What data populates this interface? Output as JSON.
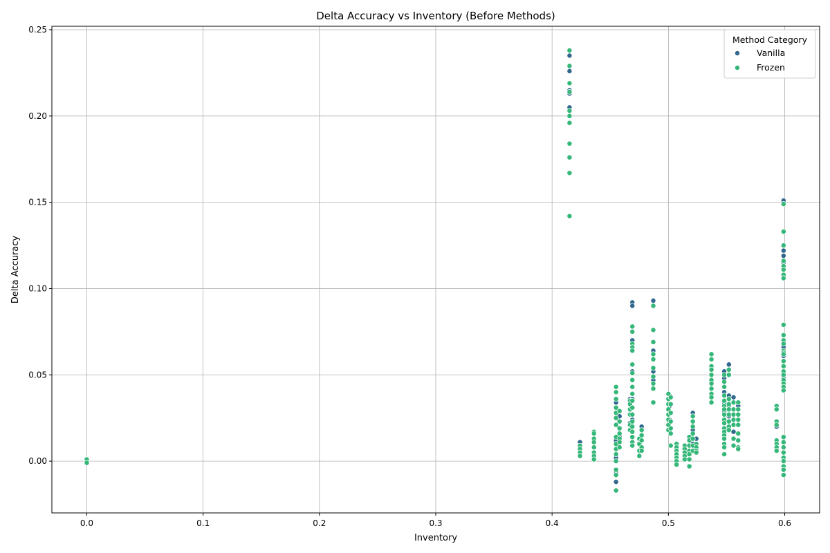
{
  "colors": {
    "vanilla": "#31688e",
    "frozen": "#35b779",
    "grid": "#b0b0b0",
    "background": "#ffffff",
    "marker_edge": "#ffffff"
  },
  "chart_data": {
    "type": "scatter",
    "title": "Delta Accuracy vs Inventory (Before Methods)",
    "xlabel": "Inventory",
    "ylabel": "Delta Accuracy",
    "xlim": [
      -0.03,
      0.63
    ],
    "ylim": [
      -0.03,
      0.252
    ],
    "xticks": [
      0.0,
      0.1,
      0.2,
      0.3,
      0.4,
      0.5,
      0.6
    ],
    "xtick_labels": [
      "0.0",
      "0.1",
      "0.2",
      "0.3",
      "0.4",
      "0.5",
      "0.6"
    ],
    "yticks": [
      0.0,
      0.05,
      0.1,
      0.15,
      0.2,
      0.25
    ],
    "ytick_labels": [
      "0.00",
      "0.05",
      "0.10",
      "0.15",
      "0.20",
      "0.25"
    ],
    "grid": true,
    "legend": {
      "title": "Method Category",
      "placement": "top-right",
      "entries": [
        "Vanilla",
        "Frozen"
      ]
    },
    "series": [
      {
        "name": "Vanilla",
        "points": [
          [
            0.0,
            0.0
          ],
          [
            0.0,
            0.001
          ],
          [
            0.0,
            -0.001
          ],
          [
            0.415,
            0.235
          ],
          [
            0.415,
            0.226
          ],
          [
            0.415,
            0.215
          ],
          [
            0.415,
            0.213
          ],
          [
            0.415,
            0.205
          ],
          [
            0.424,
            0.011
          ],
          [
            0.424,
            0.008
          ],
          [
            0.424,
            0.006
          ],
          [
            0.455,
            0.034
          ],
          [
            0.455,
            0.012
          ],
          [
            0.455,
            0.002
          ],
          [
            0.455,
            -0.006
          ],
          [
            0.455,
            -0.012
          ],
          [
            0.458,
            0.026
          ],
          [
            0.458,
            0.014
          ],
          [
            0.467,
            0.036
          ],
          [
            0.467,
            0.03
          ],
          [
            0.467,
            0.022
          ],
          [
            0.469,
            0.092
          ],
          [
            0.469,
            0.09
          ],
          [
            0.469,
            0.07
          ],
          [
            0.469,
            0.052
          ],
          [
            0.469,
            0.036
          ],
          [
            0.469,
            0.024
          ],
          [
            0.477,
            0.02
          ],
          [
            0.477,
            0.012
          ],
          [
            0.487,
            0.093
          ],
          [
            0.487,
            0.064
          ],
          [
            0.487,
            0.052
          ],
          [
            0.487,
            0.047
          ],
          [
            0.501,
            0.038
          ],
          [
            0.501,
            0.032
          ],
          [
            0.501,
            0.024
          ],
          [
            0.521,
            0.028
          ],
          [
            0.521,
            0.018
          ],
          [
            0.521,
            0.01
          ],
          [
            0.524,
            0.013
          ],
          [
            0.548,
            0.052
          ],
          [
            0.548,
            0.048
          ],
          [
            0.548,
            0.04
          ],
          [
            0.548,
            0.034
          ],
          [
            0.548,
            0.029
          ],
          [
            0.548,
            0.024
          ],
          [
            0.548,
            0.015
          ],
          [
            0.552,
            0.056
          ],
          [
            0.552,
            0.038
          ],
          [
            0.552,
            0.032
          ],
          [
            0.552,
            0.026
          ],
          [
            0.556,
            0.037
          ],
          [
            0.556,
            0.017
          ],
          [
            0.56,
            0.032
          ],
          [
            0.593,
            0.02
          ],
          [
            0.599,
            0.151
          ],
          [
            0.599,
            0.122
          ],
          [
            0.599,
            0.119
          ],
          [
            0.599,
            0.115
          ],
          [
            0.599,
            0.079
          ],
          [
            0.599,
            0.066
          ],
          [
            0.599,
            0.061
          ],
          [
            0.599,
            0.048
          ],
          [
            0.599,
            0.008
          ]
        ]
      },
      {
        "name": "Frozen",
        "points": [
          [
            0.0,
            0.0
          ],
          [
            0.0,
            0.001
          ],
          [
            0.0,
            -0.001
          ],
          [
            0.415,
            0.238
          ],
          [
            0.415,
            0.229
          ],
          [
            0.415,
            0.219
          ],
          [
            0.415,
            0.214
          ],
          [
            0.415,
            0.203
          ],
          [
            0.415,
            0.2
          ],
          [
            0.415,
            0.196
          ],
          [
            0.415,
            0.184
          ],
          [
            0.415,
            0.176
          ],
          [
            0.415,
            0.167
          ],
          [
            0.415,
            0.142
          ],
          [
            0.424,
            0.009
          ],
          [
            0.424,
            0.007
          ],
          [
            0.424,
            0.005
          ],
          [
            0.424,
            0.003
          ],
          [
            0.436,
            0.017
          ],
          [
            0.436,
            0.016
          ],
          [
            0.436,
            0.013
          ],
          [
            0.436,
            0.011
          ],
          [
            0.436,
            0.008
          ],
          [
            0.436,
            0.005
          ],
          [
            0.436,
            0.003
          ],
          [
            0.436,
            0.001
          ],
          [
            0.455,
            0.043
          ],
          [
            0.455,
            0.04
          ],
          [
            0.455,
            0.036
          ],
          [
            0.455,
            0.031
          ],
          [
            0.455,
            0.028
          ],
          [
            0.455,
            0.025
          ],
          [
            0.455,
            0.021
          ],
          [
            0.455,
            0.014
          ],
          [
            0.455,
            0.01
          ],
          [
            0.455,
            0.007
          ],
          [
            0.455,
            0.004
          ],
          [
            0.455,
            0.0
          ],
          [
            0.455,
            -0.005
          ],
          [
            0.455,
            -0.008
          ],
          [
            0.455,
            -0.017
          ],
          [
            0.458,
            0.029
          ],
          [
            0.458,
            0.023
          ],
          [
            0.458,
            0.019
          ],
          [
            0.458,
            0.016
          ],
          [
            0.458,
            0.013
          ],
          [
            0.458,
            0.011
          ],
          [
            0.458,
            0.008
          ],
          [
            0.467,
            0.035
          ],
          [
            0.467,
            0.033
          ],
          [
            0.467,
            0.03
          ],
          [
            0.467,
            0.027
          ],
          [
            0.467,
            0.021
          ],
          [
            0.467,
            0.018
          ],
          [
            0.469,
            0.078
          ],
          [
            0.469,
            0.075
          ],
          [
            0.469,
            0.068
          ],
          [
            0.469,
            0.066
          ],
          [
            0.469,
            0.064
          ],
          [
            0.469,
            0.056
          ],
          [
            0.469,
            0.051
          ],
          [
            0.469,
            0.047
          ],
          [
            0.469,
            0.043
          ],
          [
            0.469,
            0.039
          ],
          [
            0.469,
            0.035
          ],
          [
            0.469,
            0.031
          ],
          [
            0.469,
            0.027
          ],
          [
            0.469,
            0.023
          ],
          [
            0.469,
            0.02
          ],
          [
            0.469,
            0.017
          ],
          [
            0.469,
            0.014
          ],
          [
            0.469,
            0.011
          ],
          [
            0.469,
            0.009
          ],
          [
            0.475,
            0.013
          ],
          [
            0.475,
            0.01
          ],
          [
            0.475,
            0.006
          ],
          [
            0.475,
            0.003
          ],
          [
            0.477,
            0.018
          ],
          [
            0.477,
            0.015
          ],
          [
            0.477,
            0.012
          ],
          [
            0.477,
            0.008
          ],
          [
            0.477,
            0.006
          ],
          [
            0.487,
            0.09
          ],
          [
            0.487,
            0.076
          ],
          [
            0.487,
            0.069
          ],
          [
            0.487,
            0.062
          ],
          [
            0.487,
            0.059
          ],
          [
            0.487,
            0.054
          ],
          [
            0.487,
            0.049
          ],
          [
            0.487,
            0.045
          ],
          [
            0.487,
            0.042
          ],
          [
            0.487,
            0.034
          ],
          [
            0.5,
            0.039
          ],
          [
            0.5,
            0.036
          ],
          [
            0.5,
            0.033
          ],
          [
            0.5,
            0.03
          ],
          [
            0.5,
            0.027
          ],
          [
            0.5,
            0.024
          ],
          [
            0.5,
            0.021
          ],
          [
            0.5,
            0.018
          ],
          [
            0.502,
            0.037
          ],
          [
            0.502,
            0.033
          ],
          [
            0.502,
            0.028
          ],
          [
            0.502,
            0.023
          ],
          [
            0.502,
            0.019
          ],
          [
            0.502,
            0.016
          ],
          [
            0.502,
            0.009
          ],
          [
            0.507,
            0.01
          ],
          [
            0.507,
            0.008
          ],
          [
            0.507,
            0.006
          ],
          [
            0.507,
            0.004
          ],
          [
            0.507,
            0.002
          ],
          [
            0.507,
            0.0
          ],
          [
            0.507,
            -0.002
          ],
          [
            0.514,
            0.009
          ],
          [
            0.514,
            0.007
          ],
          [
            0.514,
            0.005
          ],
          [
            0.514,
            0.003
          ],
          [
            0.514,
            0.001
          ],
          [
            0.518,
            0.014
          ],
          [
            0.518,
            0.012
          ],
          [
            0.518,
            0.009
          ],
          [
            0.518,
            0.006
          ],
          [
            0.518,
            0.004
          ],
          [
            0.518,
            0.001
          ],
          [
            0.518,
            -0.003
          ],
          [
            0.521,
            0.026
          ],
          [
            0.521,
            0.023
          ],
          [
            0.521,
            0.02
          ],
          [
            0.521,
            0.016
          ],
          [
            0.521,
            0.013
          ],
          [
            0.521,
            0.009
          ],
          [
            0.521,
            0.006
          ],
          [
            0.524,
            0.01
          ],
          [
            0.524,
            0.008
          ],
          [
            0.524,
            0.006
          ],
          [
            0.524,
            0.005
          ],
          [
            0.537,
            0.062
          ],
          [
            0.537,
            0.059
          ],
          [
            0.537,
            0.055
          ],
          [
            0.537,
            0.053
          ],
          [
            0.537,
            0.05
          ],
          [
            0.537,
            0.047
          ],
          [
            0.537,
            0.045
          ],
          [
            0.537,
            0.042
          ],
          [
            0.537,
            0.039
          ],
          [
            0.537,
            0.037
          ],
          [
            0.537,
            0.034
          ],
          [
            0.548,
            0.05
          ],
          [
            0.548,
            0.046
          ],
          [
            0.548,
            0.043
          ],
          [
            0.548,
            0.038
          ],
          [
            0.548,
            0.035
          ],
          [
            0.548,
            0.032
          ],
          [
            0.548,
            0.03
          ],
          [
            0.548,
            0.027
          ],
          [
            0.548,
            0.024
          ],
          [
            0.548,
            0.022
          ],
          [
            0.548,
            0.019
          ],
          [
            0.548,
            0.017
          ],
          [
            0.548,
            0.015
          ],
          [
            0.548,
            0.013
          ],
          [
            0.548,
            0.01
          ],
          [
            0.548,
            0.008
          ],
          [
            0.548,
            0.004
          ],
          [
            0.552,
            0.053
          ],
          [
            0.552,
            0.05
          ],
          [
            0.552,
            0.036
          ],
          [
            0.552,
            0.033
          ],
          [
            0.552,
            0.03
          ],
          [
            0.552,
            0.027
          ],
          [
            0.552,
            0.023
          ],
          [
            0.552,
            0.02
          ],
          [
            0.552,
            0.018
          ],
          [
            0.556,
            0.034
          ],
          [
            0.556,
            0.03
          ],
          [
            0.556,
            0.027
          ],
          [
            0.556,
            0.024
          ],
          [
            0.556,
            0.021
          ],
          [
            0.556,
            0.013
          ],
          [
            0.556,
            0.009
          ],
          [
            0.56,
            0.034
          ],
          [
            0.56,
            0.03
          ],
          [
            0.56,
            0.027
          ],
          [
            0.56,
            0.024
          ],
          [
            0.56,
            0.021
          ],
          [
            0.56,
            0.016
          ],
          [
            0.56,
            0.012
          ],
          [
            0.56,
            0.008
          ],
          [
            0.56,
            0.007
          ],
          [
            0.593,
            0.032
          ],
          [
            0.593,
            0.03
          ],
          [
            0.593,
            0.023
          ],
          [
            0.593,
            0.021
          ],
          [
            0.593,
            0.012
          ],
          [
            0.593,
            0.01
          ],
          [
            0.593,
            0.008
          ],
          [
            0.593,
            0.006
          ],
          [
            0.599,
            0.149
          ],
          [
            0.599,
            0.133
          ],
          [
            0.599,
            0.125
          ],
          [
            0.599,
            0.116
          ],
          [
            0.599,
            0.113
          ],
          [
            0.599,
            0.111
          ],
          [
            0.599,
            0.108
          ],
          [
            0.599,
            0.106
          ],
          [
            0.599,
            0.079
          ],
          [
            0.599,
            0.073
          ],
          [
            0.599,
            0.07
          ],
          [
            0.599,
            0.068
          ],
          [
            0.599,
            0.064
          ],
          [
            0.599,
            0.063
          ],
          [
            0.599,
            0.062
          ],
          [
            0.599,
            0.058
          ],
          [
            0.599,
            0.055
          ],
          [
            0.599,
            0.052
          ],
          [
            0.599,
            0.05
          ],
          [
            0.599,
            0.047
          ],
          [
            0.599,
            0.045
          ],
          [
            0.599,
            0.043
          ],
          [
            0.599,
            0.041
          ],
          [
            0.599,
            0.014
          ],
          [
            0.599,
            0.011
          ],
          [
            0.599,
            0.008
          ],
          [
            0.599,
            0.005
          ],
          [
            0.599,
            0.002
          ],
          [
            0.599,
            0.0
          ],
          [
            0.599,
            -0.003
          ],
          [
            0.599,
            -0.005
          ],
          [
            0.599,
            -0.008
          ]
        ]
      }
    ]
  }
}
